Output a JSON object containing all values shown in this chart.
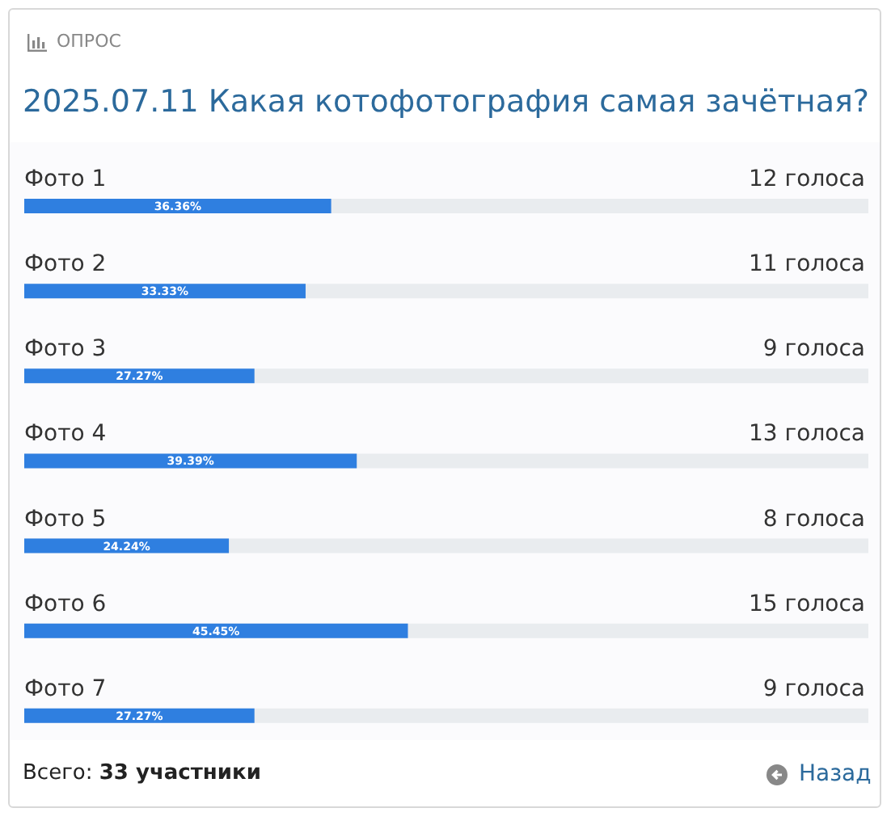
{
  "chart_data": {
    "type": "bar",
    "orientation": "horizontal",
    "subtitle": "ОПРОС",
    "title": "2025.07.11 Какая котофотография самая зачётная?",
    "categories": [
      "Фото 1",
      "Фото 2",
      "Фото 3",
      "Фото 4",
      "Фото 5",
      "Фото 6",
      "Фото 7"
    ],
    "values": [
      36.36,
      33.33,
      27.27,
      39.39,
      24.24,
      45.45,
      27.27
    ],
    "value_labels": [
      "36.36%",
      "33.33%",
      "27.27%",
      "39.39%",
      "24.24%",
      "45.45%",
      "27.27%"
    ],
    "color": "#2f7fe0",
    "xlim": [
      0,
      100
    ],
    "annotations": [
      "12 голоса",
      "11 голоса",
      "9 голоса",
      "13 голоса",
      "8 голоса",
      "15 голоса",
      "9 голоса",
      "Всего: 33 участники",
      "Назад"
    ]
  }
}
